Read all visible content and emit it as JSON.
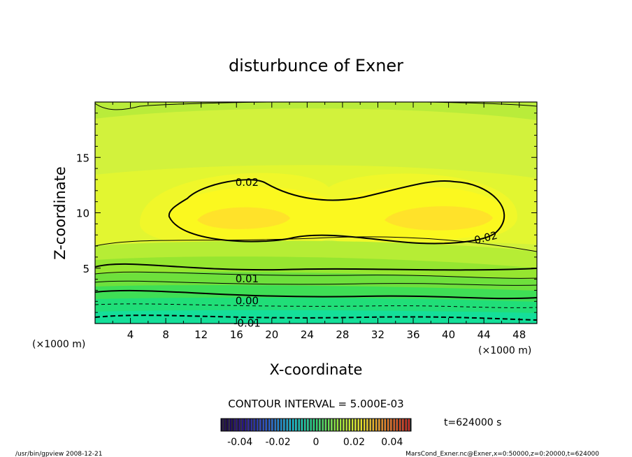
{
  "chart_data": {
    "type": "heatmap",
    "title": "disturbunce of Exner",
    "xlabel": "X-coordinate",
    "ylabel": "Z-coordinate",
    "x_unit_left": "(×1000 m)",
    "x_unit_right": "(×1000 m)",
    "xlim": [
      0,
      50
    ],
    "ylim": [
      0,
      20
    ],
    "x_ticks": [
      4,
      8,
      12,
      16,
      20,
      24,
      28,
      32,
      36,
      40,
      44,
      48
    ],
    "y_ticks": [
      5,
      10,
      15
    ],
    "contour_interval_text": "CONTOUR INTERVAL = 5.000E-03",
    "contour_levels": [
      -0.01,
      -0.005,
      0.0,
      0.005,
      0.01,
      0.015,
      0.02
    ],
    "contour_labels": [
      {
        "text": "0.02",
        "x": 17.2,
        "y": 12.8
      },
      {
        "text": "0.02",
        "x": 44.2,
        "y": 7.8
      },
      {
        "text": "0.01",
        "x": 17.2,
        "y": 4.1
      },
      {
        "text": "0.00",
        "x": 17.2,
        "y": 2.1
      },
      {
        "text": "-0.01",
        "x": 17.2,
        "y": 0.1
      }
    ],
    "field_description": "two maxima near x=14-18 and x=38-42 at z≈9.5 (~0.023); values decrease toward the bottom (~-0.012)",
    "colorbar": {
      "range": [
        -0.05,
        0.05
      ],
      "tick_labels": [
        "-0.04",
        "-0.02",
        "0",
        "0.02",
        "0.04"
      ],
      "tick_values": [
        -0.04,
        -0.02,
        0,
        0.02,
        0.04
      ]
    },
    "time_label": "t=624000 s"
  },
  "footer": {
    "left": "/usr/bin/gpview   2008-12-21",
    "right": "MarsCond_Exner.nc@Exner,x=0:50000,z=0:20000,t=624000"
  }
}
